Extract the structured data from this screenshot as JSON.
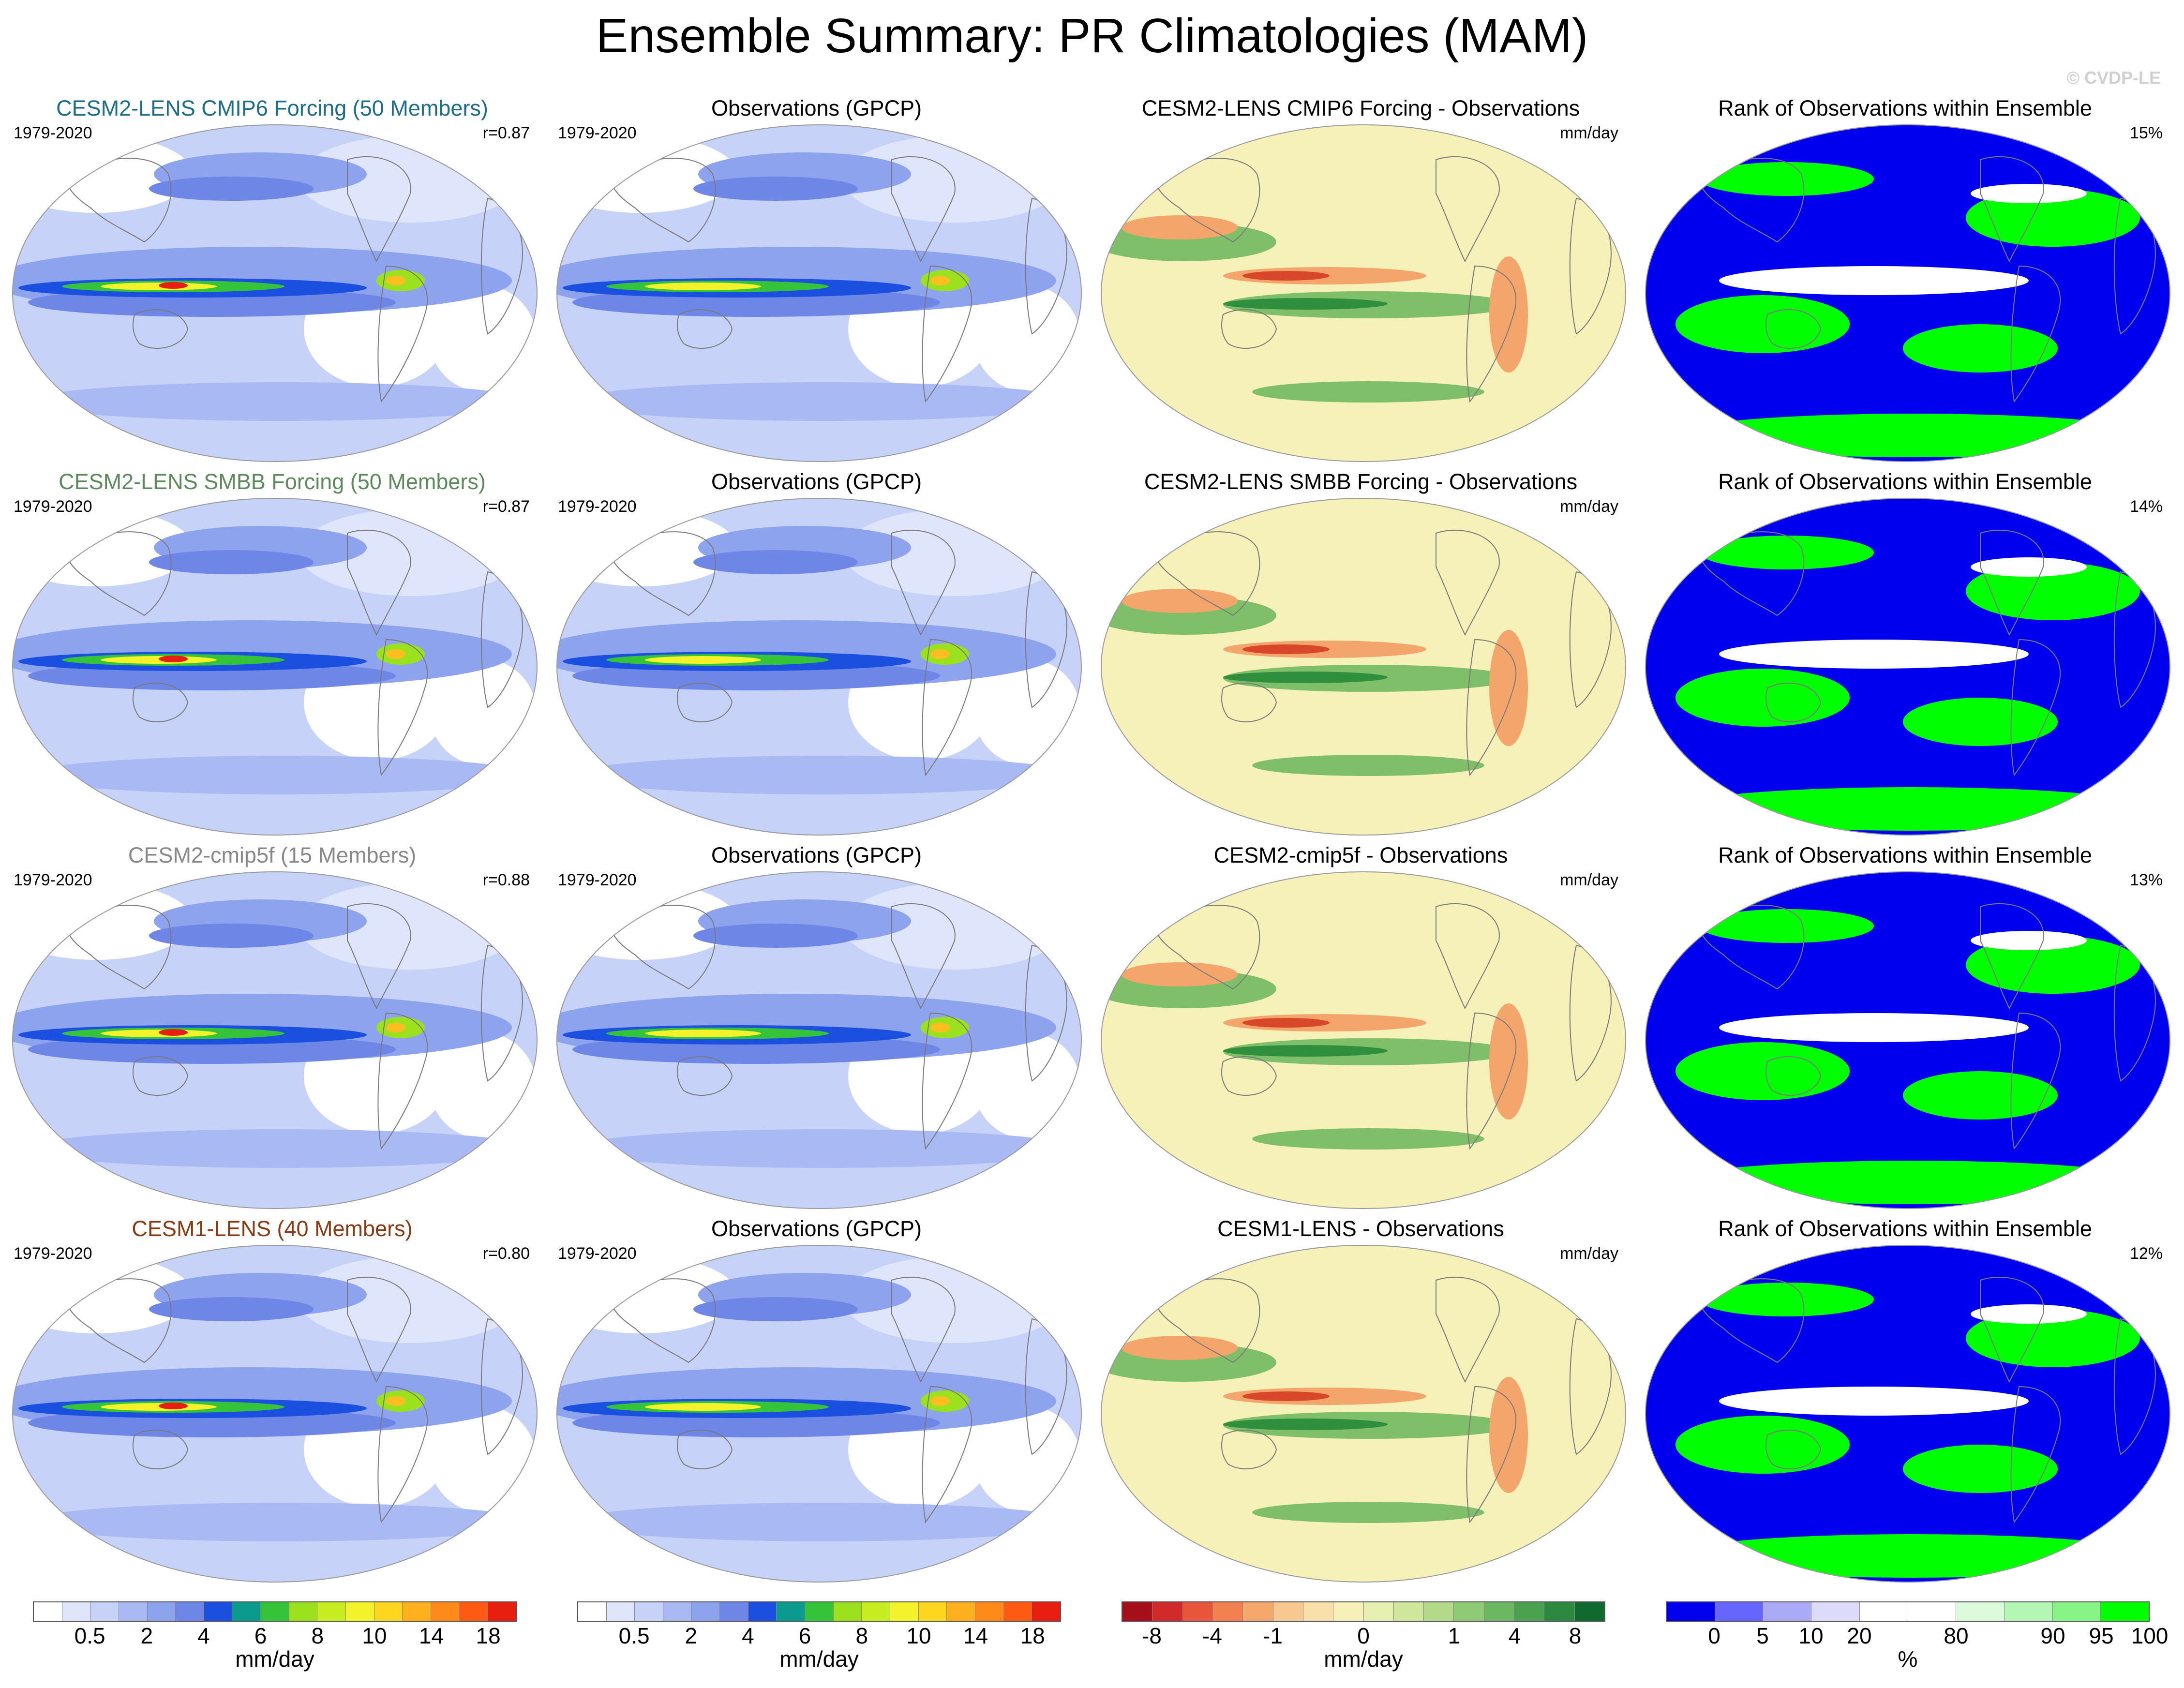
{
  "page_title": "Ensemble Summary: PR Climatologies (MAM)",
  "credit": "© CVDP-LE",
  "colors": {
    "ocean_precip": [
      "#ffffff",
      "#dfe6fb",
      "#c6d2f8",
      "#a8b9f3",
      "#8ea3ee",
      "#6e86e6",
      "#4a61dc"
    ],
    "itcz": [
      "#1a4fe0",
      "#0a9b8e",
      "#35c33a",
      "#9be11d",
      "#f4f22a",
      "#ffbe1f",
      "#ff7a1a",
      "#e81e10"
    ],
    "diff_bg": "#f5f1b8",
    "diff_pos": "#7fbf6a",
    "diff_pos_strong": "#2f8f3d",
    "diff_neg": "#f4a56c",
    "diff_neg_strong": "#d9472b",
    "rank_blue": "#0000ef",
    "rank_green": "#00ff00"
  },
  "rows": [
    {
      "model_title": "CESM2-LENS CMIP6 Forcing (50 Members)",
      "model_title_color": "#1b6d8a",
      "period": "1979-2020",
      "pattern_corr": "r=0.87",
      "obs_title": "Observations (GPCP)",
      "obs_period": "1979-2020",
      "diff_title": "CESM2-LENS CMIP6 Forcing - Observations",
      "diff_units": "mm/day",
      "rank_title": "Rank of Observations within Ensemble",
      "rank_pct": "15%"
    },
    {
      "model_title": "CESM2-LENS SMBB Forcing (50 Members)",
      "model_title_color": "#5c8a5a",
      "period": "1979-2020",
      "pattern_corr": "r=0.87",
      "obs_title": "Observations (GPCP)",
      "obs_period": "1979-2020",
      "diff_title": "CESM2-LENS SMBB Forcing - Observations",
      "diff_units": "mm/day",
      "rank_title": "Rank of Observations within Ensemble",
      "rank_pct": "14%"
    },
    {
      "model_title": "CESM2-cmip5f (15 Members)",
      "model_title_color": "#888888",
      "period": "1979-2020",
      "pattern_corr": "r=0.88",
      "obs_title": "Observations (GPCP)",
      "obs_period": "1979-2020",
      "diff_title": "CESM2-cmip5f - Observations",
      "diff_units": "mm/day",
      "rank_title": "Rank of Observations within Ensemble",
      "rank_pct": "13%"
    },
    {
      "model_title": "CESM1-LENS (40 Members)",
      "model_title_color": "#8a3a12",
      "period": "1979-2020",
      "pattern_corr": "r=0.80",
      "obs_title": "Observations (GPCP)",
      "obs_period": "1979-2020",
      "diff_title": "CESM1-LENS - Observations",
      "diff_units": "mm/day",
      "rank_title": "Rank of Observations within Ensemble",
      "rank_pct": "12%"
    }
  ],
  "colorbars": [
    {
      "units": "mm/day",
      "colors": [
        "#ffffff",
        "#dfe6fb",
        "#c6d2f8",
        "#a8b9f3",
        "#8ea3ee",
        "#6e86e6",
        "#1a4fe0",
        "#0a9b8e",
        "#35c33a",
        "#9be11d",
        "#c7ec1f",
        "#f4f22a",
        "#ffd61f",
        "#ffb01f",
        "#ff8a1a",
        "#ff5a14",
        "#e81e10"
      ],
      "tick_labels": [
        "0.5",
        "2",
        "4",
        "6",
        "8",
        "10",
        "14",
        "18"
      ]
    },
    {
      "units": "mm/day",
      "colors": [
        "#ffffff",
        "#dfe6fb",
        "#c6d2f8",
        "#a8b9f3",
        "#8ea3ee",
        "#6e86e6",
        "#1a4fe0",
        "#0a9b8e",
        "#35c33a",
        "#9be11d",
        "#c7ec1f",
        "#f4f22a",
        "#ffd61f",
        "#ffb01f",
        "#ff8a1a",
        "#ff5a14",
        "#e81e10"
      ],
      "tick_labels": [
        "0.5",
        "2",
        "4",
        "6",
        "8",
        "10",
        "14",
        "18"
      ]
    },
    {
      "units": "mm/day",
      "colors": [
        "#a50f1a",
        "#d02a2a",
        "#e8553b",
        "#f3804f",
        "#f6a76c",
        "#f8c891",
        "#f9dfa8",
        "#f5f1b8",
        "#e6f0b0",
        "#cfe79a",
        "#b2da88",
        "#8fca74",
        "#6cb862",
        "#4aa150",
        "#2c8a40",
        "#0f6a30"
      ],
      "tick_labels": [
        "-8",
        "-4",
        "-1",
        "0",
        "1",
        "4",
        "8"
      ]
    },
    {
      "units": "%",
      "colors": [
        "#0000ef",
        "#6666ff",
        "#aaaaf6",
        "#dcdcfa",
        "#ffffff",
        "#ffffff",
        "#dcfadc",
        "#b4f7b4",
        "#86f586",
        "#00ff00"
      ],
      "tick_labels": [
        "0",
        "5",
        "10",
        "20",
        "80",
        "90",
        "95",
        "100"
      ]
    }
  ]
}
